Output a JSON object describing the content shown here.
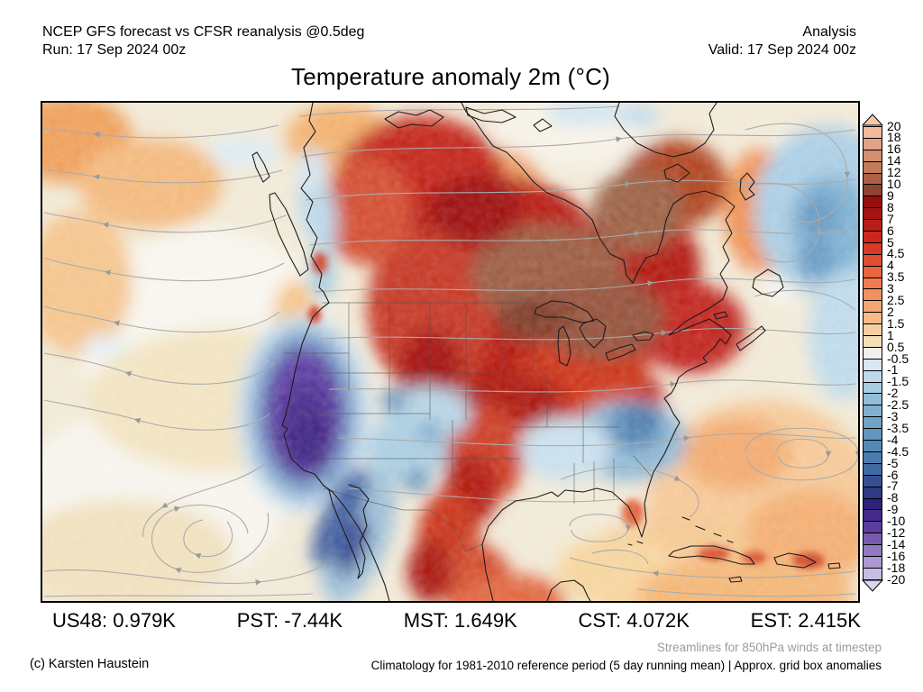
{
  "header": {
    "left_line1": "NCEP GFS forecast vs CFSR reanalysis @0.5deg",
    "left_line2": "Run: 17 Sep 2024 00z",
    "right_line1": "Analysis",
    "right_line2": "Valid: 17 Sep 2024 00z"
  },
  "title": "Temperature anomaly 2m (°C)",
  "stats": [
    {
      "label": "US48:",
      "value": "0.979K"
    },
    {
      "label": "PST:",
      "value": "-7.44K"
    },
    {
      "label": "MST:",
      "value": "1.649K"
    },
    {
      "label": "CST:",
      "value": "4.072K"
    },
    {
      "label": "EST:",
      "value": "2.415K"
    }
  ],
  "footer": {
    "streamnote": "Streamlines for 850hPa winds at timestep",
    "copyright": "(c) Karsten Haustein",
    "climnote": "Climatology for 1981-2010 reference period (5 day running mean) | Approx. grid box anomalies"
  },
  "colorbar": {
    "unit": "°C",
    "labels": [
      "20",
      "18",
      "16",
      "14",
      "12",
      "10",
      "9",
      "8",
      "7",
      "6",
      "5",
      "4.5",
      "4",
      "3.5",
      "3",
      "2.5",
      "2",
      "1.5",
      "1",
      "0.5",
      "-0.5",
      "-1",
      "-1.5",
      "-2",
      "-2.5",
      "-3",
      "-3.5",
      "-4",
      "-4.5",
      "-5",
      "-6",
      "-7",
      "-8",
      "-9",
      "-10",
      "-12",
      "-14",
      "-16",
      "-18",
      "-20"
    ],
    "colors": [
      "#f2b99d",
      "#e4a286",
      "#d38f70",
      "#c17a5a",
      "#ab6144",
      "#8f4430",
      "#970d0d",
      "#a51414",
      "#b81d19",
      "#cb271d",
      "#d63a28",
      "#e04e31",
      "#e8653e",
      "#ee7c4d",
      "#f29160",
      "#f5a674",
      "#f7ba88",
      "#f7cf9e",
      "#f3e0b6",
      "#f0efec",
      "#d5e8f3",
      "#bedaea",
      "#a8cce0",
      "#92bed8",
      "#80b0cf",
      "#6fa3c7",
      "#6196bf",
      "#5489b6",
      "#4a7dac",
      "#40699f",
      "#374f92",
      "#2f3a85",
      "#2e2178",
      "#452a8a",
      "#5c3d9d",
      "#775bae",
      "#9179c1",
      "#ac99d3",
      "#c7bce5"
    ],
    "arrow_top": "#f4c9ae",
    "arrow_bottom": "#dad4ef"
  },
  "map": {
    "field": "Temperature anomaly 2m",
    "wind_level": "850hPa",
    "accent_colors": {
      "warm_core": "#a51414",
      "very_warm_core": "#8f4430",
      "cold_core": "#452a8a",
      "streamline_gray": "#ababab",
      "ocean_neutral": "#f1e9d6"
    }
  }
}
